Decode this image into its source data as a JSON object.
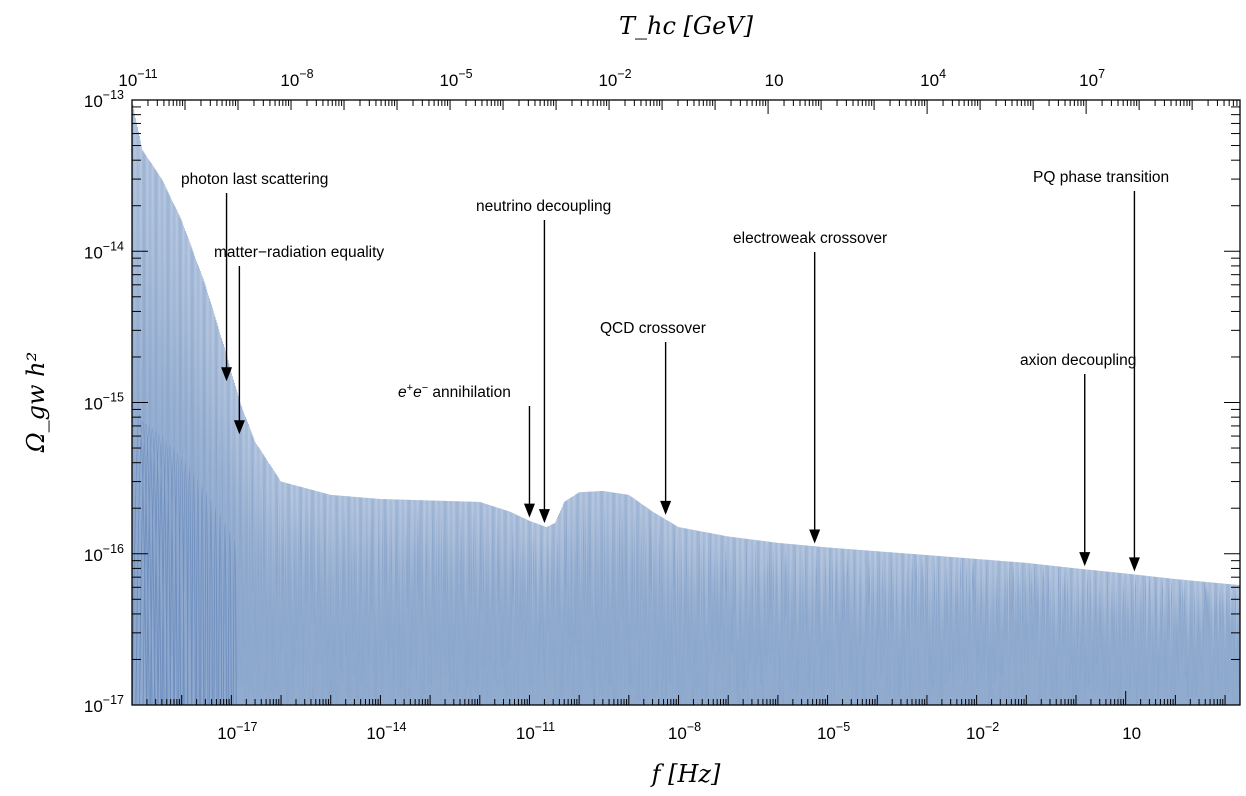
{
  "chart_data": {
    "type": "line",
    "title": "",
    "xlabel": "f [Hz]",
    "ylabel": "Ω_gw h²",
    "top_xlabel": "T_hc [GeV]",
    "x_scale": "log",
    "y_scale": "log",
    "xlim": [
      1e-19,
      2000
    ],
    "ylim": [
      1e-17,
      1e-13
    ],
    "top_xlim": [
      1e-11,
      8000000000.0
    ],
    "grid": false,
    "legend": "none",
    "x_tick_labels": [
      {
        "base": "10",
        "exp": "−17",
        "value": 1e-17
      },
      {
        "base": "10",
        "exp": "−14",
        "value": 1e-14
      },
      {
        "base": "10",
        "exp": "−11",
        "value": 1e-11
      },
      {
        "base": "10",
        "exp": "−8",
        "value": 1e-08
      },
      {
        "base": "10",
        "exp": "−5",
        "value": 1e-05
      },
      {
        "base": "10",
        "exp": "−2",
        "value": 0.01
      },
      {
        "base": "10",
        "exp": "",
        "value": 10
      }
    ],
    "top_tick_labels": [
      {
        "base": "10",
        "exp": "−11",
        "value": 1e-11
      },
      {
        "base": "10",
        "exp": "−8",
        "value": 1e-08
      },
      {
        "base": "10",
        "exp": "−5",
        "value": 1e-05
      },
      {
        "base": "10",
        "exp": "−2",
        "value": 0.01
      },
      {
        "base": "10",
        "exp": "",
        "value": 10
      },
      {
        "base": "10",
        "exp": "4",
        "value": 10000.0
      },
      {
        "base": "10",
        "exp": "7",
        "value": 10000000.0
      }
    ],
    "y_tick_labels": [
      {
        "base": "10",
        "exp": "−13",
        "value": 1e-13
      },
      {
        "base": "10",
        "exp": "−14",
        "value": 1e-14
      },
      {
        "base": "10",
        "exp": "−15",
        "value": 1e-15
      },
      {
        "base": "10",
        "exp": "−16",
        "value": 1e-16
      },
      {
        "base": "10",
        "exp": "−17",
        "value": 1e-17
      }
    ],
    "series": [
      {
        "color": "#8ba6cc",
        "envelope": [
          [
            1e-19,
            1e-13
          ],
          [
            1.6e-19,
            4.7e-14
          ],
          [
            4e-19,
            3e-14
          ],
          [
            1e-18,
            1.6e-14
          ],
          [
            3e-18,
            6e-15
          ],
          [
            7e-18,
            2.4e-15
          ],
          [
            1.5e-17,
            1e-15
          ],
          [
            3e-17,
            5.5e-16
          ],
          [
            1e-16,
            3e-16
          ],
          [
            1e-15,
            2.45e-16
          ],
          [
            1e-14,
            2.3e-16
          ],
          [
            1e-13,
            2.25e-16
          ],
          [
            1e-12,
            2.2e-16
          ],
          [
            4e-12,
            1.9e-16
          ],
          [
            1e-11,
            1.65e-16
          ],
          [
            2.2e-11,
            1.5e-16
          ],
          [
            3.3e-11,
            1.6e-16
          ],
          [
            5e-11,
            2.2e-16
          ],
          [
            1e-10,
            2.55e-16
          ],
          [
            3e-10,
            2.6e-16
          ],
          [
            1e-09,
            2.45e-16
          ],
          [
            3e-09,
            1.9e-16
          ],
          [
            1e-08,
            1.5e-16
          ],
          [
            1e-07,
            1.3e-16
          ],
          [
            1e-06,
            1.18e-16
          ],
          [
            1e-05,
            1.1e-16
          ],
          [
            0.001,
            9.8e-17
          ],
          [
            0.1,
            8.7e-17
          ],
          [
            1,
            8e-17
          ],
          [
            10,
            7.4e-17
          ],
          [
            100,
            6.8e-17
          ],
          [
            2000,
            6.2e-17
          ]
        ]
      }
    ],
    "annotations": [
      {
        "label": "photon last scattering",
        "x": 8e-18,
        "y": 1.3e-15
      },
      {
        "label": "matter−radiation equality",
        "x": 1.45e-17,
        "y": 5.8e-16
      },
      {
        "label": "annihilation",
        "prefix": "e",
        "prefix_sup": "+",
        "prefix2": "e",
        "prefix2_sup": "−",
        "x": 1e-11,
        "y": 1.63e-16
      },
      {
        "label": "neutrino decoupling",
        "x": 2e-11,
        "y": 1.5e-16
      },
      {
        "label": "QCD crossover",
        "x": 5.5e-09,
        "y": 1.7e-16
      },
      {
        "label": "electroweak crossover",
        "x": 5.5e-06,
        "y": 1.1e-16
      },
      {
        "label": "axion decoupling",
        "x": 1.5,
        "y": 7.8e-17
      },
      {
        "label": "PQ phase transition",
        "x": 15,
        "y": 7.2e-17
      }
    ]
  }
}
